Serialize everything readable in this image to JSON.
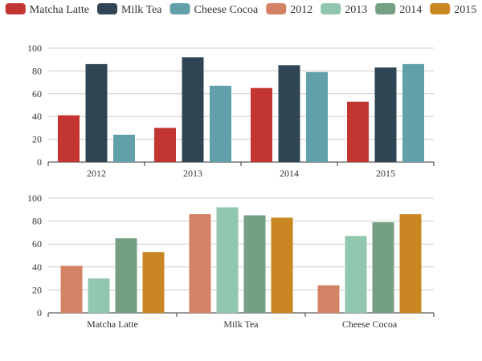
{
  "chart_data": [
    {
      "type": "bar",
      "title": "",
      "xlabel": "",
      "ylabel": "",
      "categories": [
        "2012",
        "2013",
        "2014",
        "2015"
      ],
      "ylim": [
        0,
        100
      ],
      "yticks": [
        0,
        20,
        40,
        60,
        80,
        100
      ],
      "grid": true,
      "series": [
        {
          "name": "Matcha Latte",
          "values": [
            41,
            30,
            65,
            53
          ],
          "color": "#c23531"
        },
        {
          "name": "Milk Tea",
          "values": [
            86,
            92,
            85,
            83
          ],
          "color": "#2f4554"
        },
        {
          "name": "Cheese Cocoa",
          "values": [
            24,
            67,
            79,
            86
          ],
          "color": "#61a0a8"
        }
      ]
    },
    {
      "type": "bar",
      "title": "",
      "xlabel": "",
      "ylabel": "",
      "categories": [
        "Matcha Latte",
        "Milk Tea",
        "Cheese Cocoa"
      ],
      "ylim": [
        0,
        100
      ],
      "yticks": [
        0,
        20,
        40,
        60,
        80,
        100
      ],
      "grid": true,
      "series": [
        {
          "name": "2012",
          "values": [
            41,
            86,
            24
          ],
          "color": "#d48265"
        },
        {
          "name": "2013",
          "values": [
            30,
            92,
            67
          ],
          "color": "#91c7ae"
        },
        {
          "name": "2014",
          "values": [
            65,
            85,
            79
          ],
          "color": "#749f83"
        },
        {
          "name": "2015",
          "values": [
            53,
            83,
            86
          ],
          "color": "#ca8622"
        }
      ]
    }
  ],
  "legend": {
    "placement": "top",
    "items": [
      {
        "name": "Matcha Latte",
        "color": "#c23531"
      },
      {
        "name": "Milk Tea",
        "color": "#2f4554"
      },
      {
        "name": "Cheese Cocoa",
        "color": "#61a0a8"
      },
      {
        "name": "2012",
        "color": "#d48265"
      },
      {
        "name": "2013",
        "color": "#91c7ae"
      },
      {
        "name": "2014",
        "color": "#749f83"
      },
      {
        "name": "2015",
        "color": "#ca8622"
      }
    ]
  }
}
